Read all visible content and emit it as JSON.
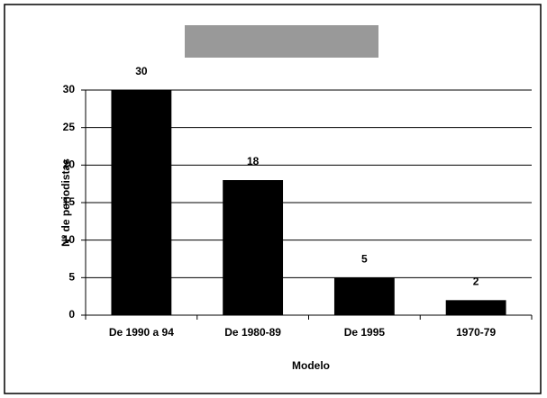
{
  "chart_data": {
    "type": "bar",
    "categories": [
      "De 1990 a 94",
      "De 1980-89",
      "De 1995",
      "1970-79"
    ],
    "values": [
      30,
      18,
      5,
      2
    ],
    "color": "#000000",
    "ylim": [
      0,
      30
    ],
    "yticks": [
      0,
      5,
      10,
      15,
      20,
      25,
      30
    ],
    "ylabel": "Nº de periodistas",
    "xlabel": "Modelo",
    "grid": true
  }
}
